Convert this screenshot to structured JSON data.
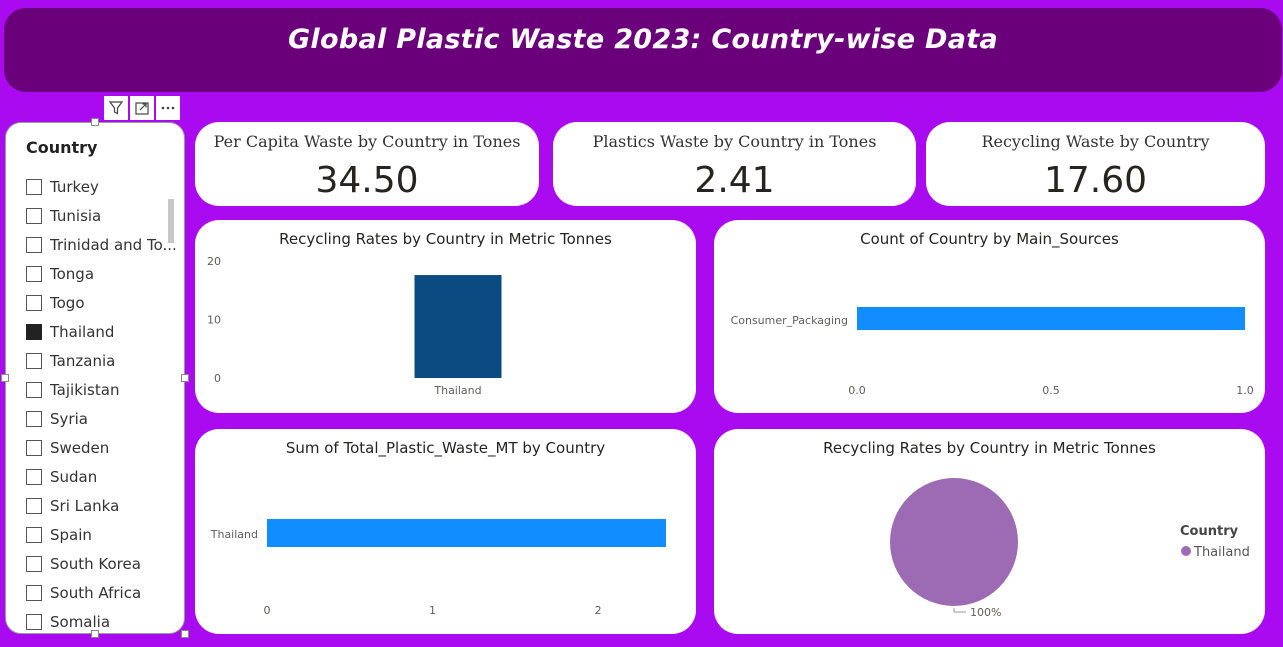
{
  "header": {
    "title": "Global Plastic Waste 2023: Country-wise Data"
  },
  "slicer": {
    "title": "Country",
    "items": [
      {
        "label": "Turkey",
        "checked": false
      },
      {
        "label": "Tunisia",
        "checked": false
      },
      {
        "label": "Trinidad and To...",
        "checked": false
      },
      {
        "label": "Tonga",
        "checked": false
      },
      {
        "label": "Togo",
        "checked": false
      },
      {
        "label": "Thailand",
        "checked": true
      },
      {
        "label": "Tanzania",
        "checked": false
      },
      {
        "label": "Tajikistan",
        "checked": false
      },
      {
        "label": "Syria",
        "checked": false
      },
      {
        "label": "Sweden",
        "checked": false
      },
      {
        "label": "Sudan",
        "checked": false
      },
      {
        "label": "Sri Lanka",
        "checked": false
      },
      {
        "label": "Spain",
        "checked": false
      },
      {
        "label": "South Korea",
        "checked": false
      },
      {
        "label": "South Africa",
        "checked": false
      },
      {
        "label": "Somalia",
        "checked": false
      }
    ]
  },
  "toolbar": {
    "icons": [
      "filter-icon",
      "focus-mode-icon",
      "more-options-icon"
    ]
  },
  "kpis": {
    "per_capita": {
      "label": "Per Capita Waste by Country in Tones",
      "value": "34.50"
    },
    "plastics": {
      "label": "Plastics Waste by Country in Tones",
      "value": "2.41"
    },
    "recycling": {
      "label": "Recycling Waste by Country",
      "value": "17.60"
    }
  },
  "colors": {
    "header": "#6b007b",
    "background": "#a90af0",
    "bar_dark": "#0c4a82",
    "bar_light": "#118dff",
    "pie": "#9d6bb3"
  },
  "chart_data": [
    {
      "id": "recycling-column",
      "type": "bar",
      "orientation": "vertical",
      "title": "Recycling Rates by Country in Metric Tonnes",
      "categories": [
        "Thailand"
      ],
      "values": [
        17.6
      ],
      "yticks": [
        "0",
        "10",
        "20"
      ],
      "ylim": [
        0,
        20
      ]
    },
    {
      "id": "main-sources-bar",
      "type": "bar",
      "orientation": "horizontal",
      "title": "Count of Country by Main_Sources",
      "categories": [
        "Consumer_Packaging"
      ],
      "values": [
        1
      ],
      "xticks": [
        "0.0",
        "0.5",
        "1.0"
      ],
      "xlim": [
        0,
        1
      ]
    },
    {
      "id": "total-waste-bar",
      "type": "bar",
      "orientation": "horizontal",
      "title": "Sum of Total_Plastic_Waste_MT by Country",
      "categories": [
        "Thailand"
      ],
      "values": [
        2.41
      ],
      "xticks": [
        "0",
        "1",
        "2"
      ],
      "xlim": [
        0,
        2.41
      ]
    },
    {
      "id": "recycling-pie",
      "type": "pie",
      "title": "Recycling Rates by Country in Metric Tonnes",
      "categories": [
        "Thailand"
      ],
      "values": [
        100
      ],
      "data_labels": [
        "100%"
      ],
      "legend": {
        "title": "Country",
        "placement": "right"
      }
    }
  ]
}
